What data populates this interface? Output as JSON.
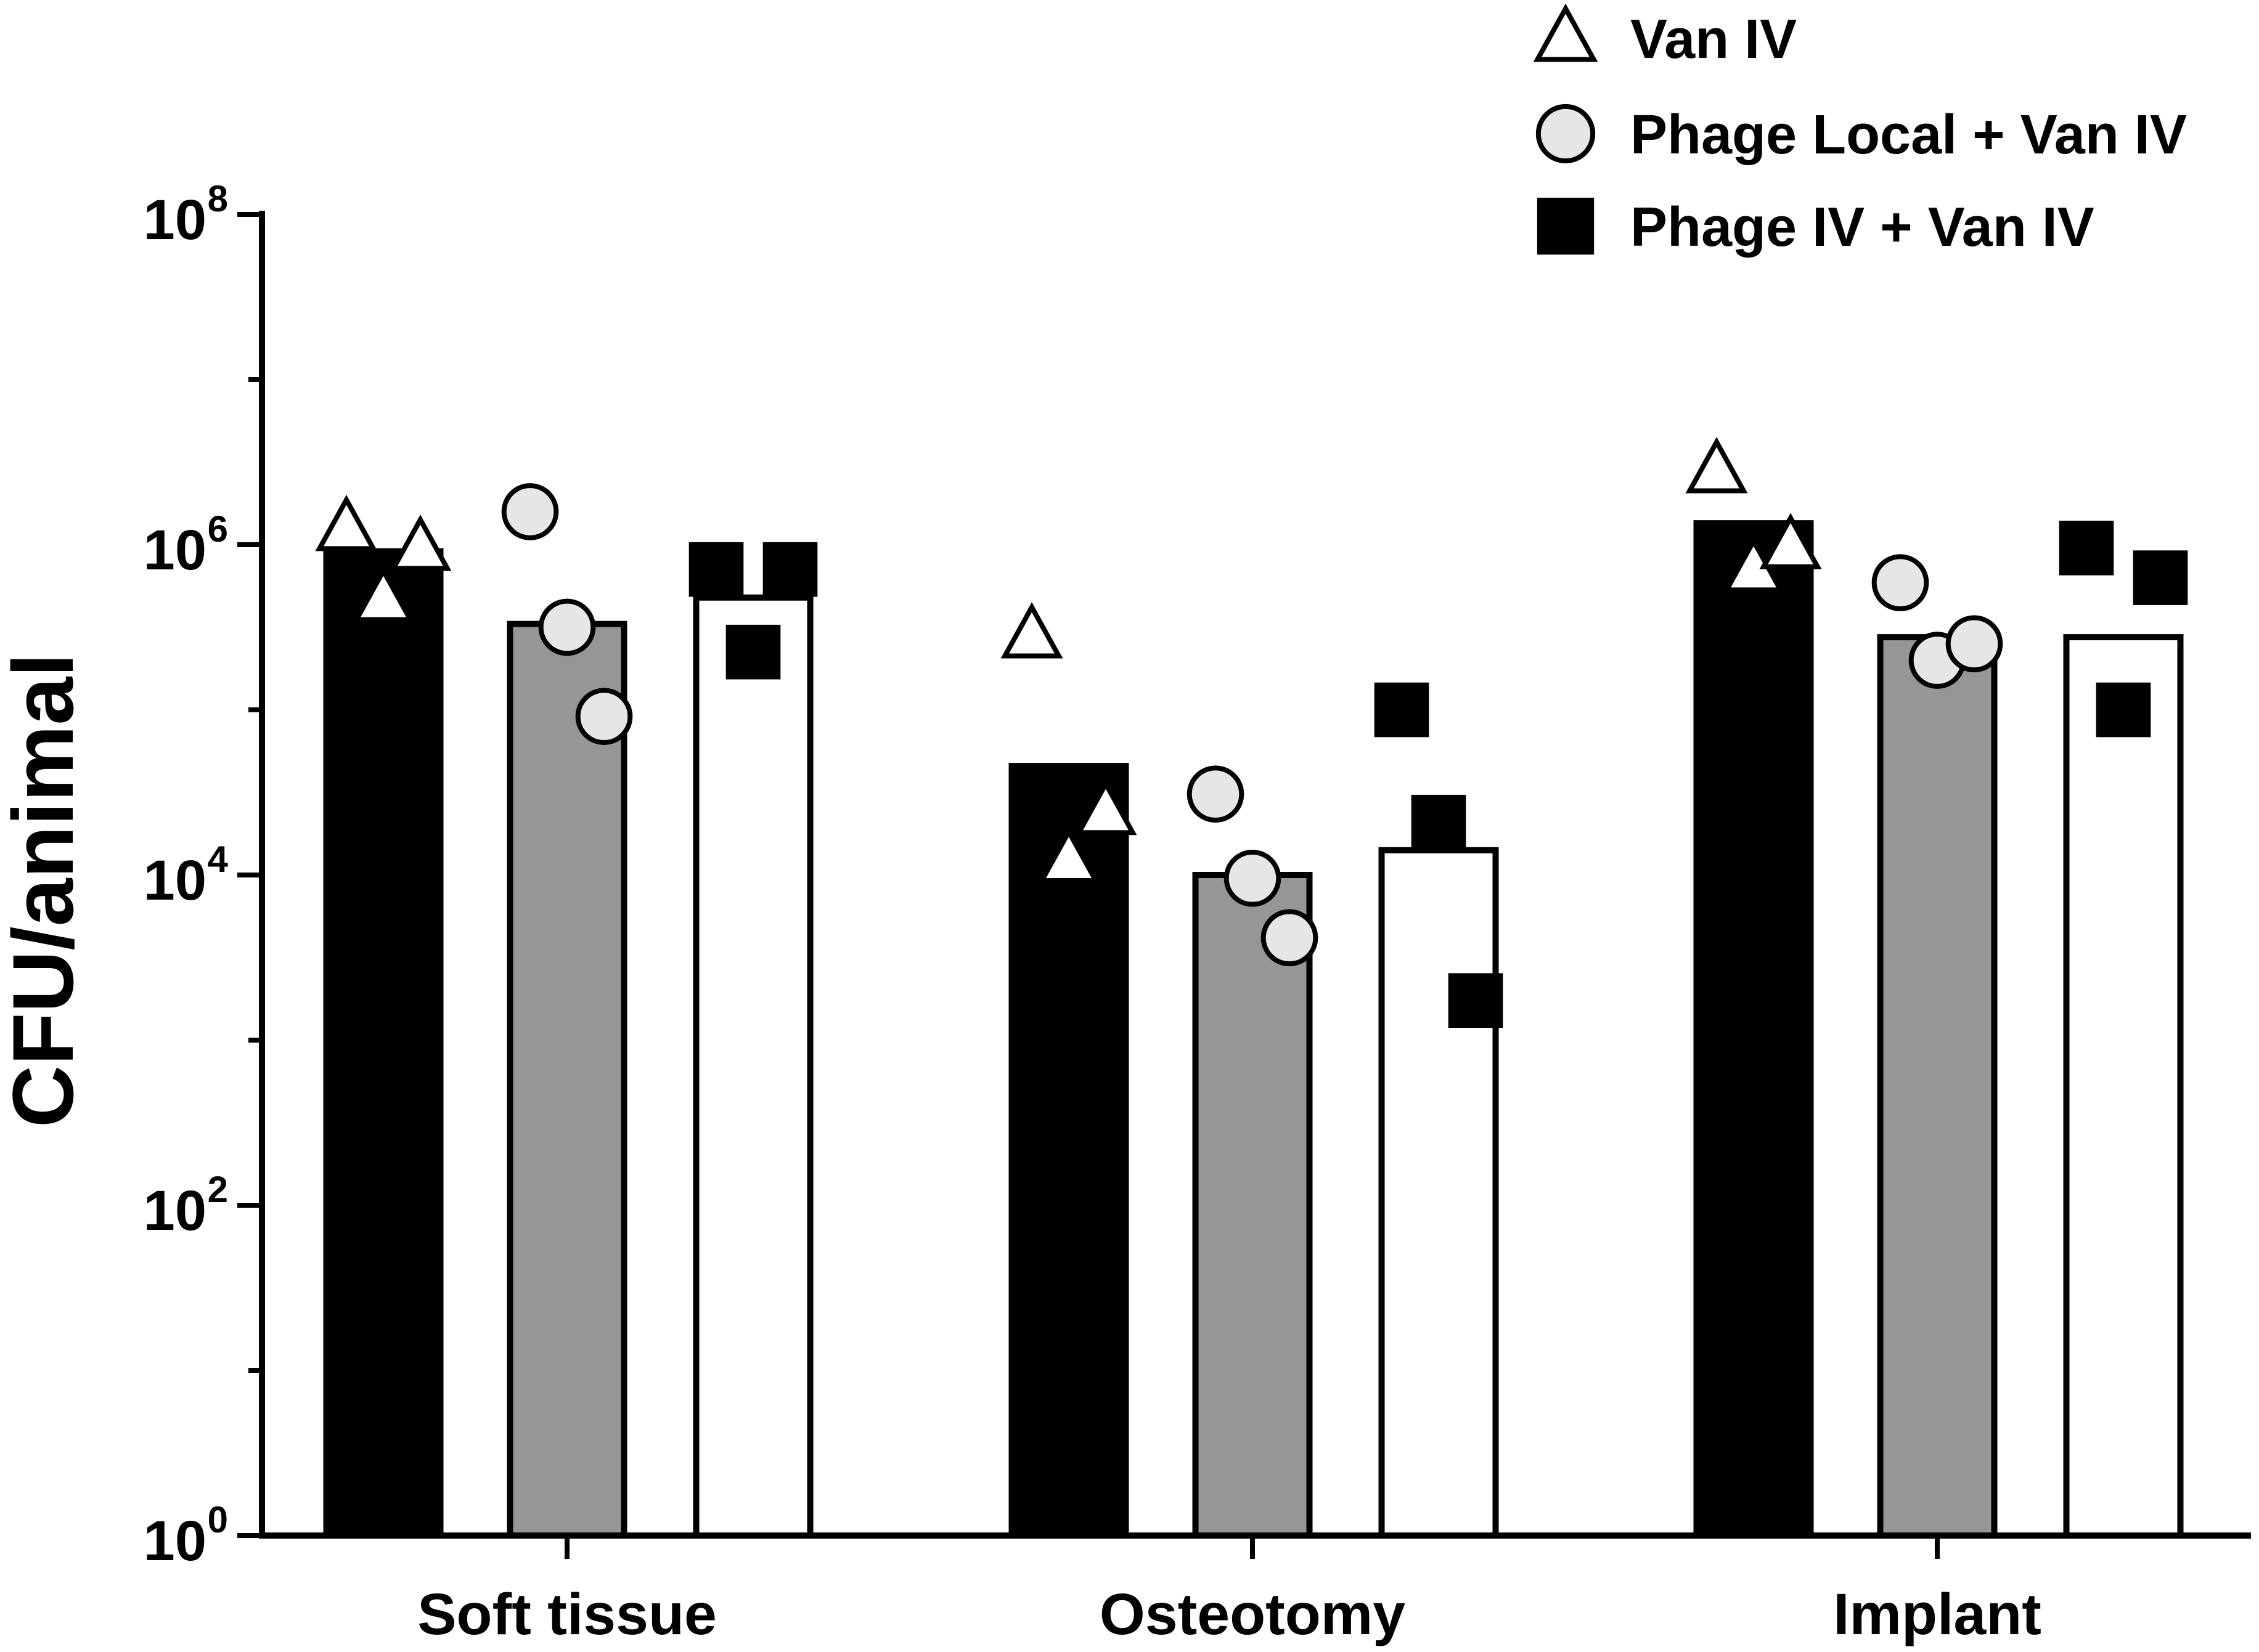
{
  "chart_data": {
    "type": "bar",
    "ylabel": "CFU/animal",
    "xlabel": "",
    "yscale": "log",
    "ylim_log10": [
      0,
      8
    ],
    "yticks": [
      {
        "exp": 0,
        "base": "10",
        "sup": "0"
      },
      {
        "exp": 2,
        "base": "10",
        "sup": "2"
      },
      {
        "exp": 4,
        "base": "10",
        "sup": "4"
      },
      {
        "exp": 6,
        "base": "10",
        "sup": "6"
      },
      {
        "exp": 8,
        "base": "10",
        "sup": "8"
      }
    ],
    "categories": [
      "Soft tissue",
      "Osteotomy",
      "Implant"
    ],
    "series": [
      {
        "name": "Van IV",
        "marker": "triangle",
        "bar_color": "#000000",
        "marker_fill": "#ffffff",
        "bar_values_log10": [
          5.96,
          4.66,
          6.13
        ],
        "points_log10": [
          [
            6.1,
            5.67,
            5.98
          ],
          [
            5.45,
            4.09,
            4.38
          ],
          [
            6.45,
            5.85,
            5.99
          ]
        ]
      },
      {
        "name": "Phage Local + Van IV",
        "marker": "circle",
        "bar_color": "#969696",
        "marker_fill": "#e6e6e6",
        "bar_values_log10": [
          5.52,
          4.0,
          5.44
        ],
        "points_log10": [
          [
            6.2,
            5.5,
            4.96
          ],
          [
            4.49,
            3.98,
            3.62
          ],
          [
            5.77,
            5.3,
            5.4
          ]
        ]
      },
      {
        "name": "Phage IV + Van IV",
        "marker": "square",
        "bar_color": "#ffffff",
        "marker_fill": "#000000",
        "bar_values_log10": [
          5.68,
          4.15,
          5.44
        ],
        "points_log10": [
          [
            5.85,
            5.35,
            5.85
          ],
          [
            5.0,
            4.32,
            3.24
          ],
          [
            5.98,
            5.0,
            5.8
          ]
        ]
      }
    ],
    "legend": {
      "placement": "top-right",
      "entries": [
        "Van IV",
        "Phage Local + Van IV",
        "Phage IV + Van IV"
      ]
    }
  }
}
